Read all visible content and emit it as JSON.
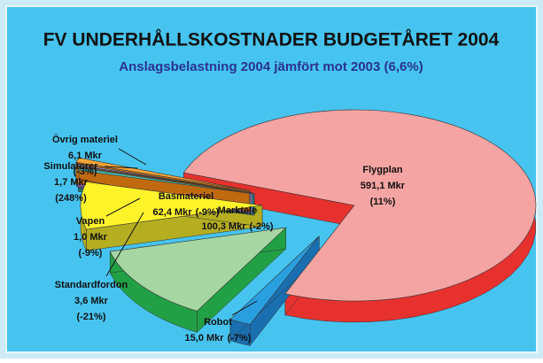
{
  "chart_data": {
    "type": "pie",
    "title": "FV UNDERHÅLLSKOSTNADER BUDGETÅRET 2004",
    "subtitle": "Anslagsbelastning 2004 jämfört mot 2003 (6,6%)",
    "categories": [
      "Flygplan",
      "Robot",
      "Marktele",
      "Basmateriel",
      "Standardfordon",
      "Vapen",
      "Simulatorer",
      "Övrig materiel"
    ],
    "values": [
      591.1,
      15.0,
      100.3,
      62.4,
      3.6,
      1.0,
      1.7,
      6.1
    ],
    "value_labels": [
      "591,1 Mkr",
      "15,0 Mkr",
      "100,3 Mkr",
      "62,4 Mkr",
      "3,6 Mkr",
      "1,0 Mkr",
      "1,7 Mkr",
      "6,1 Mkr"
    ],
    "change_labels": [
      "(11%)",
      "(-7%)",
      "(-2%)",
      "(-9%)",
      "(-21%)",
      "(-9%)",
      "(248%)",
      "(-3%)"
    ],
    "colors": [
      "#f4a4a2",
      "#2a9fe0",
      "#a6d7a3",
      "#fff32a",
      "#3fb6b0",
      "#a8c6e6",
      "#c6a6e0",
      "#f7a63c"
    ],
    "side_colors": [
      "#e6312e",
      "#1a6fb0",
      "#22a045",
      "#b4ae20",
      "#1c7a78",
      "#6a88b0",
      "#8a60a8",
      "#c06a10"
    ]
  }
}
